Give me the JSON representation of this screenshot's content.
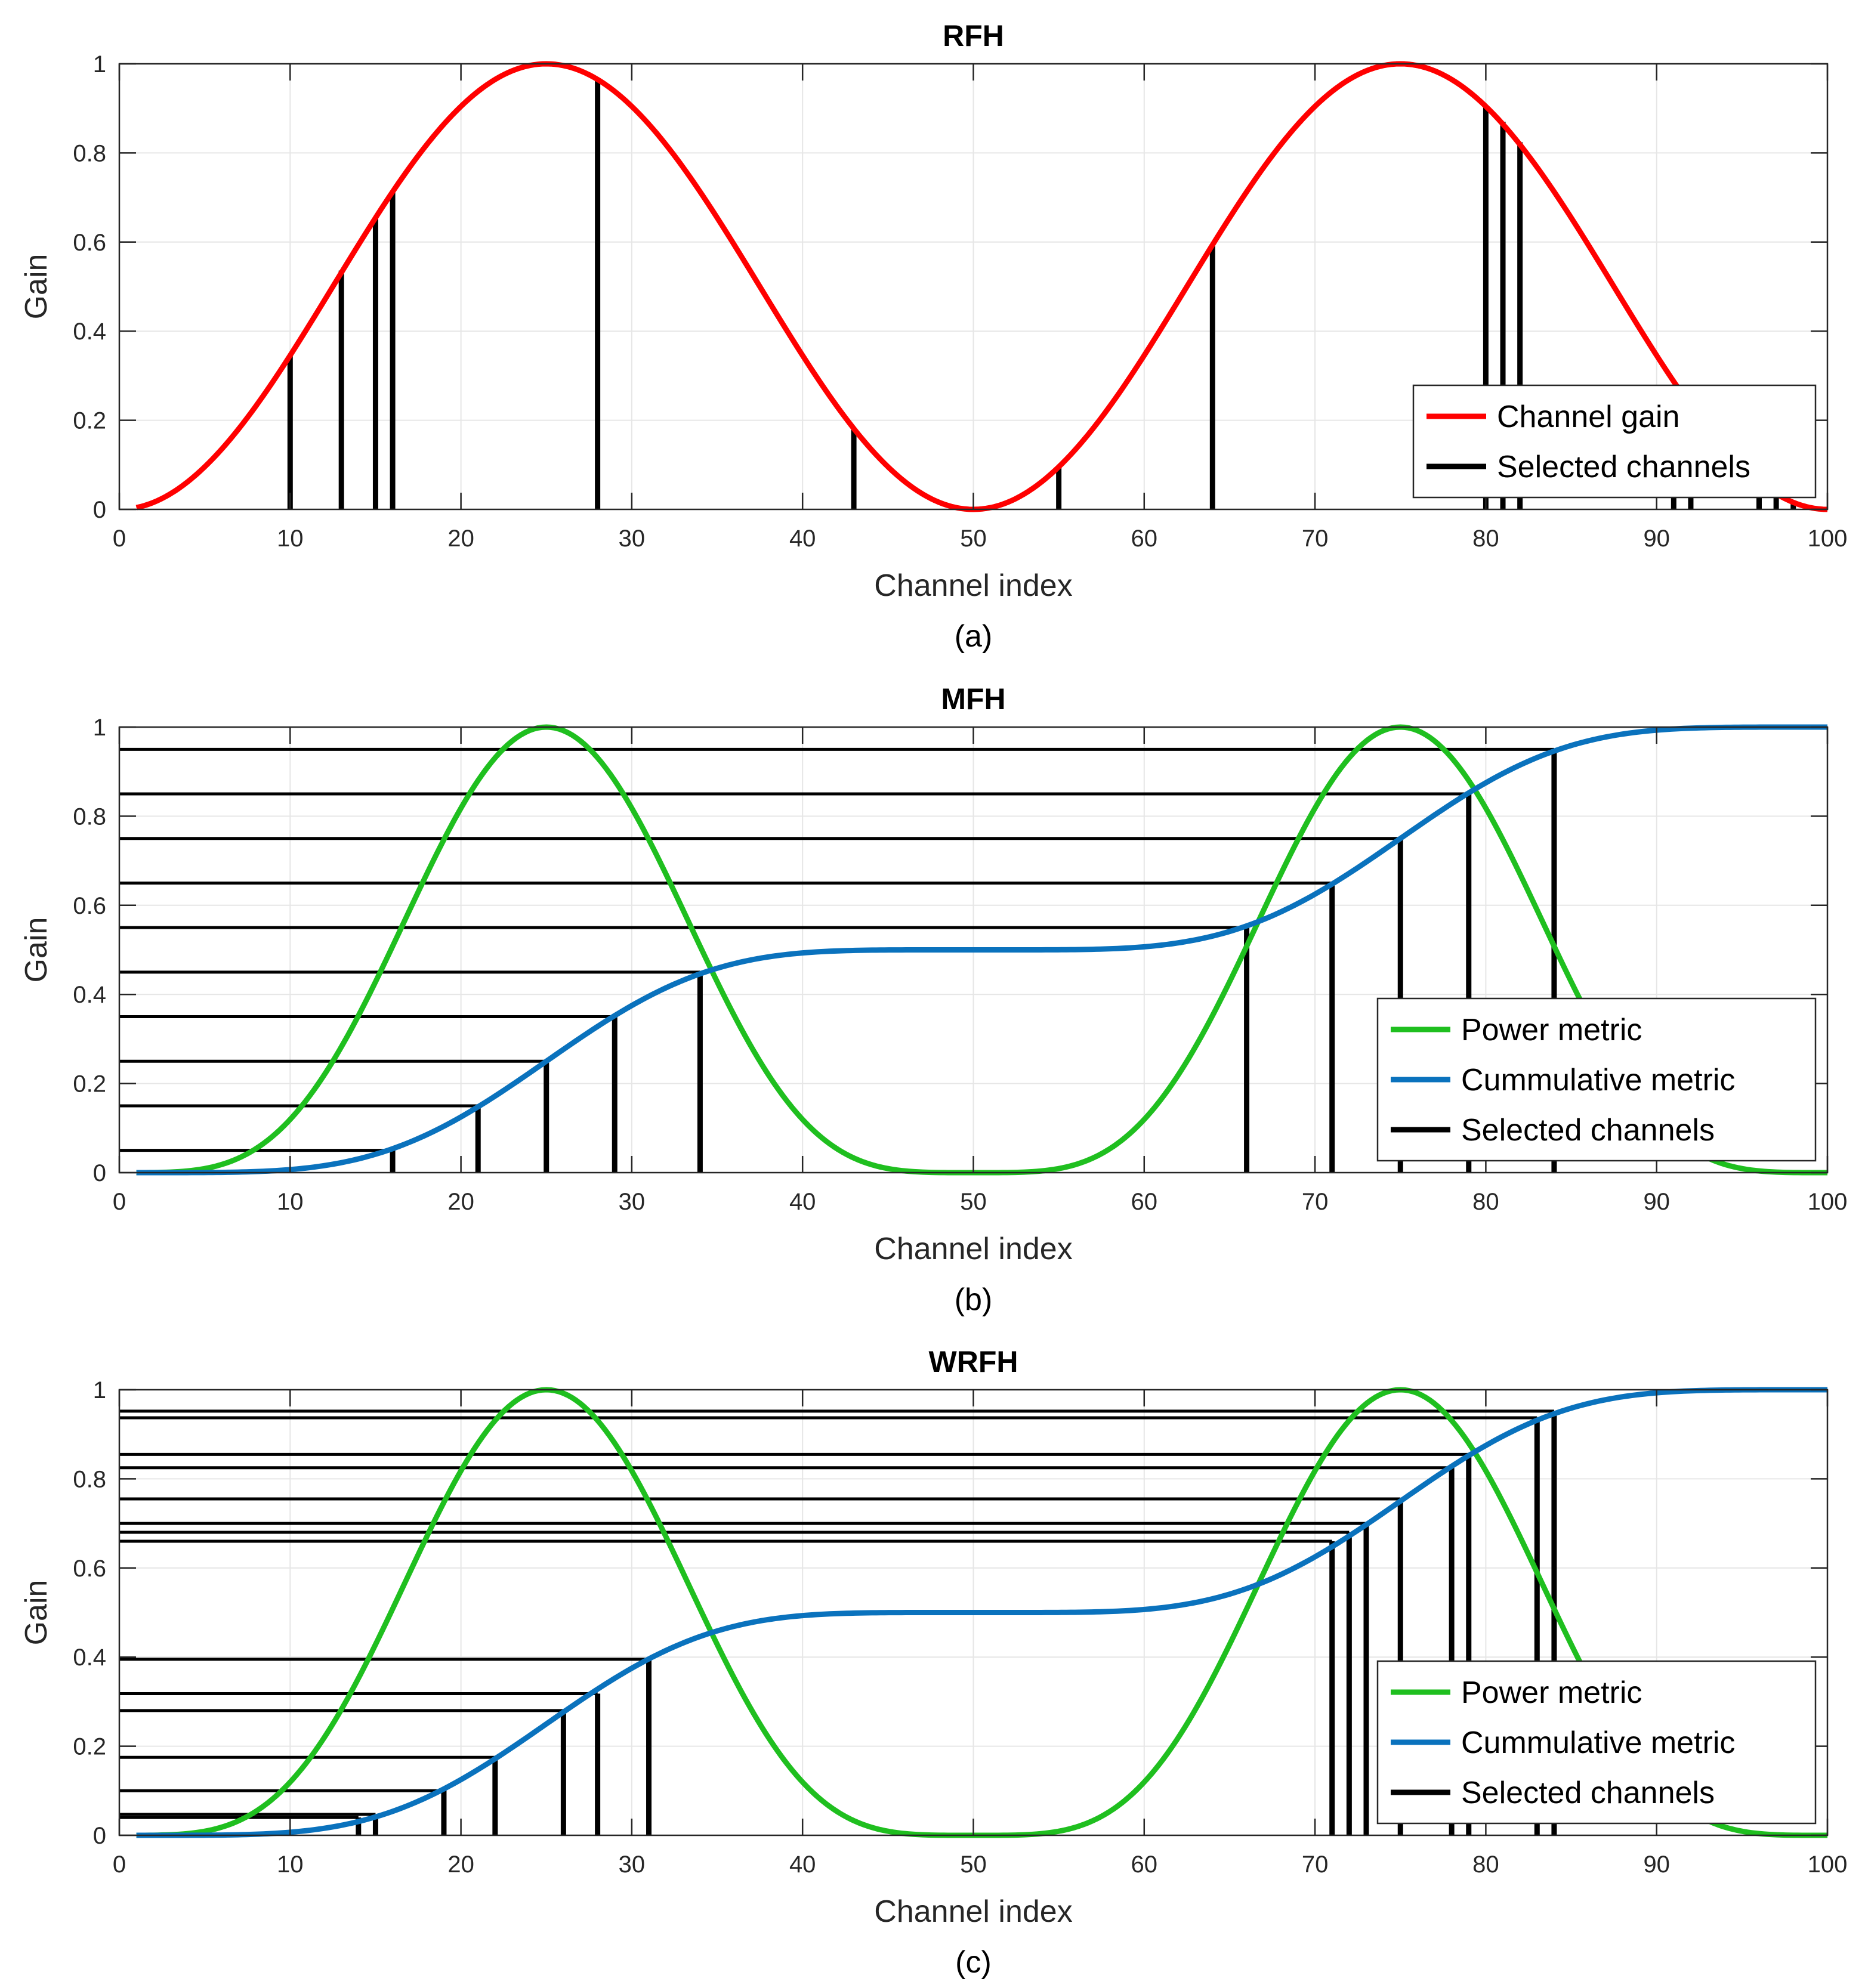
{
  "chart_data": [
    {
      "id": "a",
      "type": "line",
      "title": "RFH",
      "caption": "(a)",
      "xlabel": "Channel index",
      "ylabel": "Gain",
      "xlim": [
        0,
        100
      ],
      "ylim": [
        0,
        1
      ],
      "xticks": [
        0,
        10,
        20,
        30,
        40,
        50,
        60,
        70,
        80,
        90,
        100
      ],
      "yticks": [
        0,
        0.2,
        0.4,
        0.6,
        0.8,
        1
      ],
      "xtick_labels": [
        "0",
        "10",
        "20",
        "30",
        "40",
        "50",
        "60",
        "70",
        "80",
        "90",
        "100"
      ],
      "ytick_labels": [
        "0",
        "0.2",
        "0.4",
        "0.6",
        "0.8",
        "1"
      ],
      "grid": true,
      "legend_position": "bottom-right",
      "series": [
        {
          "name": "Channel gain",
          "color": "#ff0000",
          "function": "sin^2(pi*x/50)",
          "x_range": [
            1,
            100
          ]
        }
      ],
      "selected_channels": {
        "name": "Selected channels",
        "color": "#000000",
        "x": [
          10,
          13,
          15,
          16,
          28,
          43,
          55,
          64,
          80,
          81,
          82,
          91,
          92,
          96,
          97,
          98
        ],
        "gain": [
          0.345,
          0.536,
          0.655,
          0.713,
          0.965,
          0.181,
          0.095,
          0.595,
          0.905,
          0.87,
          0.824,
          0.275,
          0.235,
          0.064,
          0.036,
          0.016
        ]
      },
      "horizontal_lines": []
    },
    {
      "id": "b",
      "type": "line",
      "title": "MFH",
      "caption": "(b)",
      "xlabel": "Channel index",
      "ylabel": "Gain",
      "xlim": [
        0,
        100
      ],
      "ylim": [
        0,
        1
      ],
      "xticks": [
        0,
        10,
        20,
        30,
        40,
        50,
        60,
        70,
        80,
        90,
        100
      ],
      "yticks": [
        0,
        0.2,
        0.4,
        0.6,
        0.8,
        1
      ],
      "xtick_labels": [
        "0",
        "10",
        "20",
        "30",
        "40",
        "50",
        "60",
        "70",
        "80",
        "90",
        "100"
      ],
      "ytick_labels": [
        "0",
        "0.2",
        "0.4",
        "0.6",
        "0.8",
        "1"
      ],
      "grid": true,
      "legend_position": "bottom-right",
      "series": [
        {
          "name": "Power metric",
          "color": "#1fbf1f",
          "function": "sin^4(pi*x/50)",
          "x_range": [
            1,
            100
          ]
        },
        {
          "name": "Cummulative metric",
          "color": "#0a72bd",
          "function": "normalized cumulative of power metric",
          "x_range": [
            1,
            100
          ]
        }
      ],
      "selected_channels": {
        "name": "Selected channels",
        "color": "#000000",
        "x": [
          16,
          21,
          25,
          29,
          34,
          66,
          71,
          75,
          79,
          84
        ],
        "gain": [
          0.05,
          0.15,
          0.25,
          0.35,
          0.45,
          0.55,
          0.65,
          0.75,
          0.85,
          0.95
        ]
      },
      "horizontal_lines": [
        0.05,
        0.15,
        0.25,
        0.35,
        0.45,
        0.55,
        0.65,
        0.75,
        0.85,
        0.95
      ]
    },
    {
      "id": "c",
      "type": "line",
      "title": "WRFH",
      "caption": "(c)",
      "xlabel": "Channel index",
      "ylabel": "Gain",
      "xlim": [
        0,
        100
      ],
      "ylim": [
        0,
        1
      ],
      "xticks": [
        0,
        10,
        20,
        30,
        40,
        50,
        60,
        70,
        80,
        90,
        100
      ],
      "yticks": [
        0,
        0.2,
        0.4,
        0.6,
        0.8,
        1
      ],
      "xtick_labels": [
        "0",
        "10",
        "20",
        "30",
        "40",
        "50",
        "60",
        "70",
        "80",
        "90",
        "100"
      ],
      "ytick_labels": [
        "0",
        "0.2",
        "0.4",
        "0.6",
        "0.8",
        "1"
      ],
      "grid": true,
      "legend_position": "bottom-right",
      "series": [
        {
          "name": "Power metric",
          "color": "#1fbf1f",
          "function": "sin^4(pi*x/50)",
          "x_range": [
            1,
            100
          ]
        },
        {
          "name": "Cummulative metric",
          "color": "#0a72bd",
          "function": "normalized cumulative of power metric",
          "x_range": [
            1,
            100
          ]
        }
      ],
      "selected_channels": {
        "name": "Selected channels",
        "color": "#000000",
        "x": [
          14,
          15,
          19,
          22,
          26,
          28,
          31,
          71,
          72,
          73,
          75,
          78,
          79,
          83,
          84
        ],
        "gain": [
          0.04,
          0.047,
          0.1,
          0.175,
          0.28,
          0.318,
          0.395,
          0.66,
          0.68,
          0.7,
          0.755,
          0.825,
          0.855,
          0.937,
          0.952
        ]
      },
      "horizontal_lines": [
        0.04,
        0.047,
        0.1,
        0.175,
        0.28,
        0.318,
        0.395,
        0.66,
        0.68,
        0.7,
        0.755,
        0.825,
        0.855,
        0.937,
        0.952
      ]
    }
  ]
}
